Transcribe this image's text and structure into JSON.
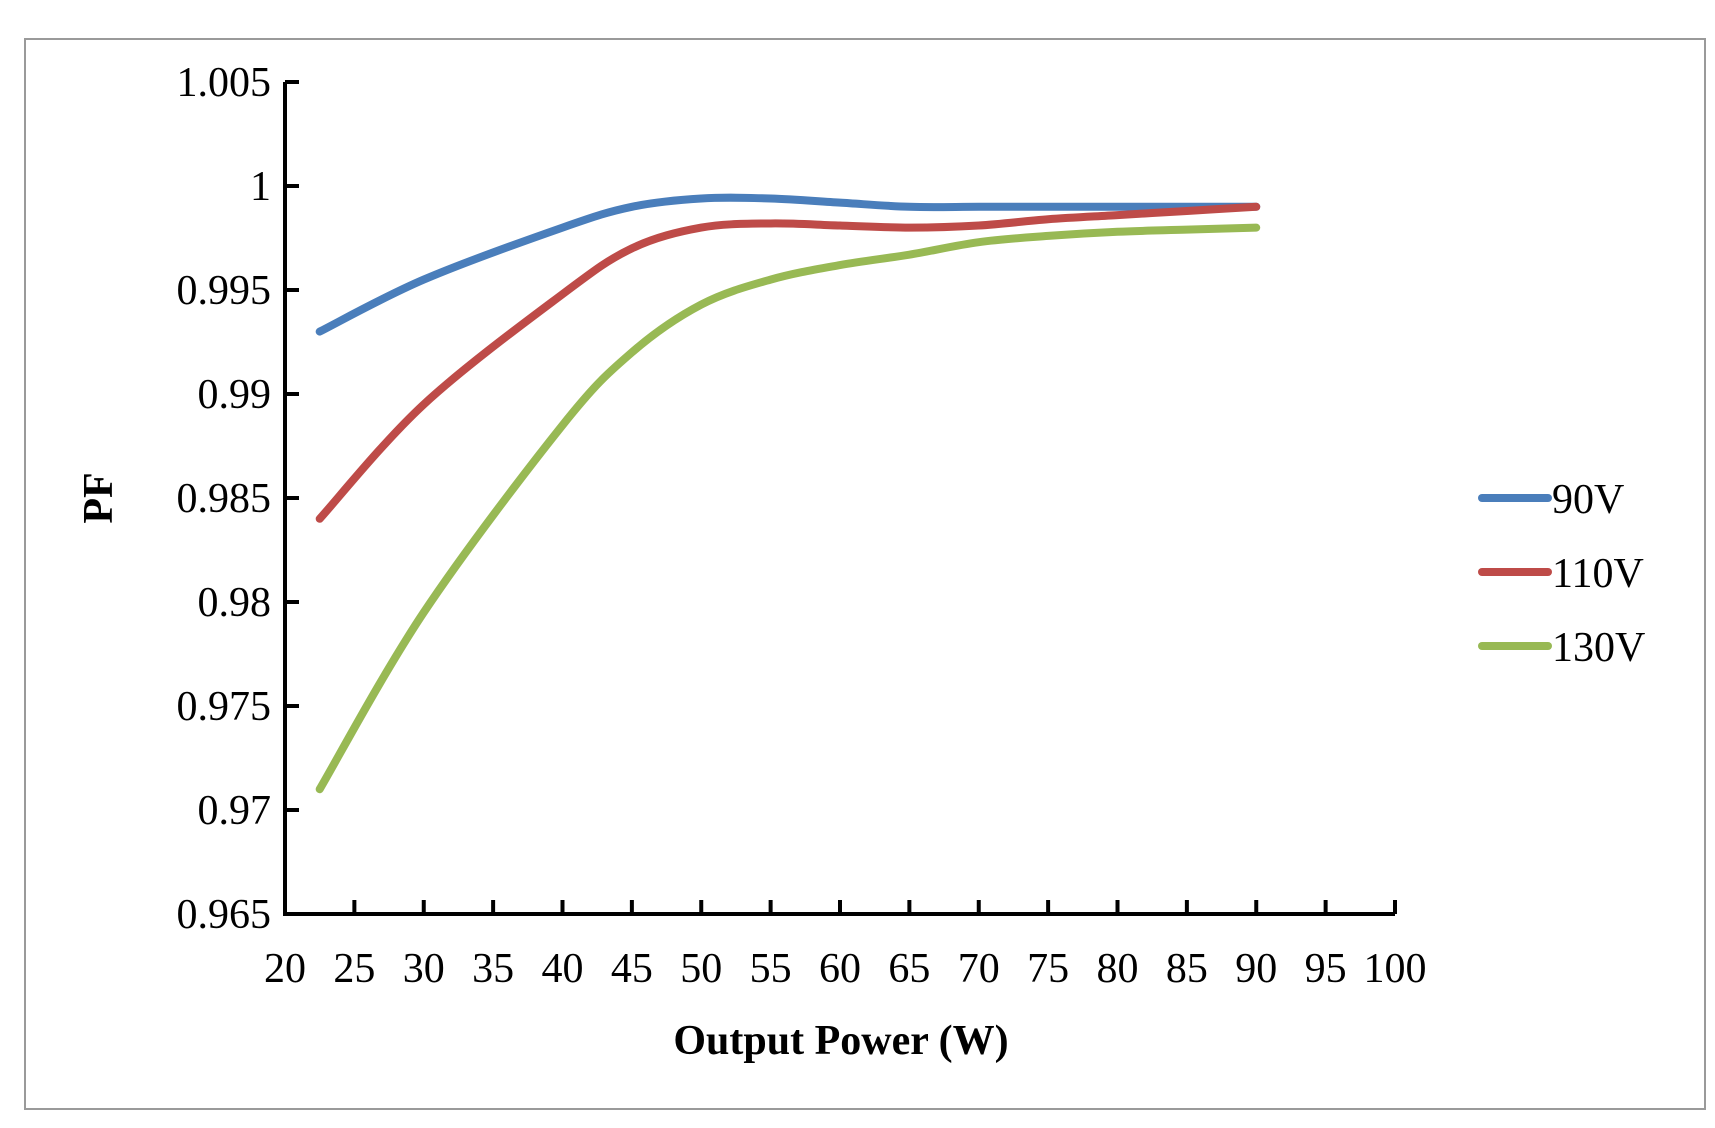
{
  "chart_data": {
    "type": "line",
    "title": "",
    "xlabel": "Output Power (W)",
    "ylabel": "PF",
    "xlim": [
      20,
      100
    ],
    "ylim": [
      0.965,
      1.005
    ],
    "x_ticks": [
      "20",
      "25",
      "30",
      "35",
      "40",
      "45",
      "50",
      "55",
      "60",
      "65",
      "70",
      "75",
      "80",
      "85",
      "90",
      "95",
      "100"
    ],
    "y_ticks": [
      "0.965",
      "0.97",
      "0.975",
      "0.98",
      "0.985",
      "0.99",
      "0.995",
      "1",
      "1.005"
    ],
    "x": [
      22.5,
      30,
      40,
      45,
      50,
      55,
      60,
      65,
      70,
      75,
      80,
      85,
      90
    ],
    "series": [
      {
        "name": "90V",
        "color": "#4a7ebb",
        "values": [
          0.993,
          0.9955,
          0.998,
          0.999,
          0.9994,
          0.9994,
          0.9992,
          0.999,
          0.999,
          0.999,
          0.999,
          0.999,
          0.999
        ]
      },
      {
        "name": "110V",
        "color": "#be4b48",
        "values": [
          0.984,
          0.9895,
          0.9948,
          0.997,
          0.998,
          0.9982,
          0.9981,
          0.998,
          0.9981,
          0.9984,
          0.9986,
          0.9988,
          0.999
        ]
      },
      {
        "name": "130V",
        "color": "#98b954",
        "values": [
          0.971,
          0.9795,
          0.9885,
          0.992,
          0.9943,
          0.9955,
          0.9962,
          0.9967,
          0.9973,
          0.9976,
          0.9978,
          0.9979,
          0.998
        ]
      }
    ],
    "legend_position": "right"
  }
}
